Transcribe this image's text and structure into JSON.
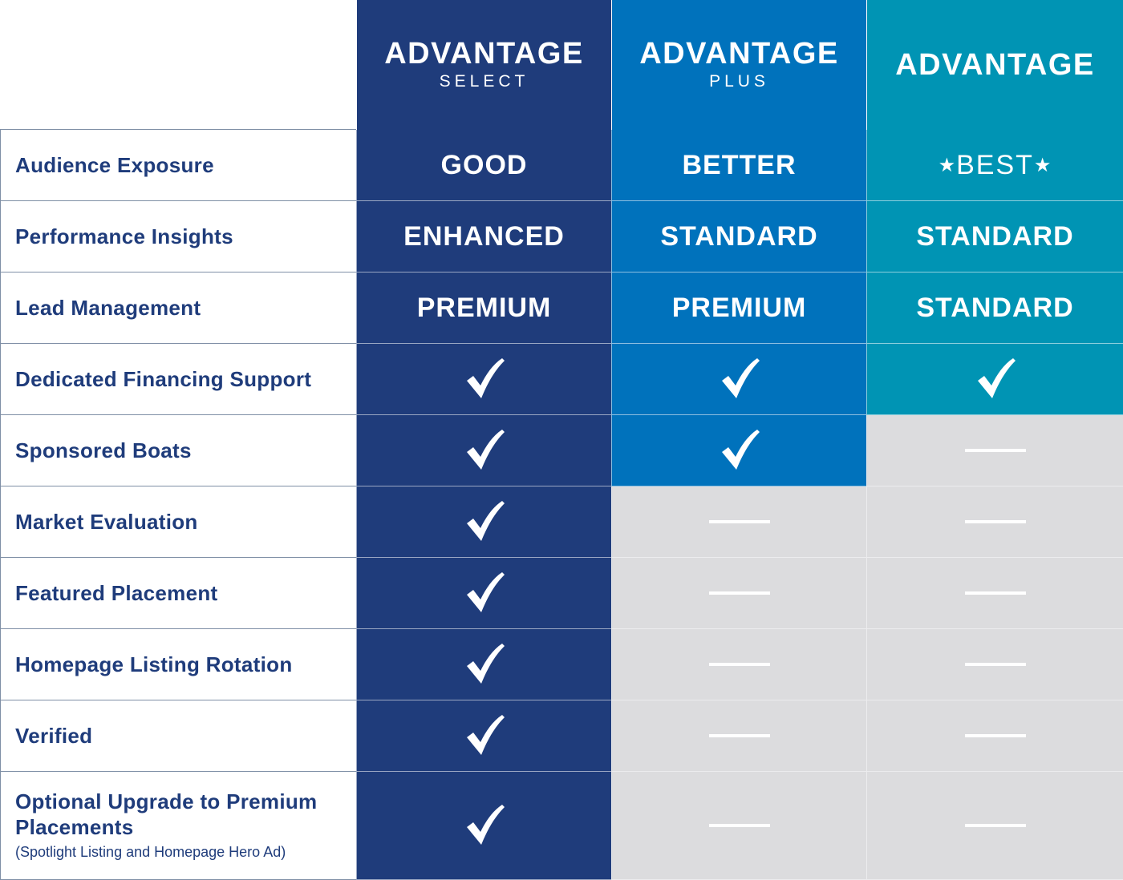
{
  "tiers": [
    {
      "name": "ADVANTAGE",
      "subtitle": "SELECT",
      "color": "#1f3c7b"
    },
    {
      "name": "ADVANTAGE",
      "subtitle": "PLUS",
      "color": "#0072bc"
    },
    {
      "name": "ADVANTAGE",
      "subtitle": "",
      "color": "#0094b4"
    }
  ],
  "rows": [
    {
      "label": "Audience Exposure",
      "values": [
        "GOOD",
        "BETTER",
        "BEST"
      ]
    },
    {
      "label": "Performance Insights",
      "values": [
        "ENHANCED",
        "STANDARD",
        "STANDARD"
      ]
    },
    {
      "label": "Lead Management",
      "values": [
        "PREMIUM",
        "PREMIUM",
        "STANDARD"
      ]
    },
    {
      "label": "Dedicated Financing Support",
      "values": [
        "check",
        "check",
        "check"
      ]
    },
    {
      "label": "Sponsored Boats",
      "values": [
        "check",
        "check",
        "none"
      ]
    },
    {
      "label": "Market Evaluation",
      "values": [
        "check",
        "none",
        "none"
      ]
    },
    {
      "label": "Featured Placement",
      "values": [
        "check",
        "none",
        "none"
      ]
    },
    {
      "label": "Homepage Listing Rotation",
      "values": [
        "check",
        "none",
        "none"
      ]
    },
    {
      "label": "Verified",
      "values": [
        "check",
        "none",
        "none"
      ]
    },
    {
      "label": "Optional Upgrade to Premium Placements",
      "note": "(Spotlight Listing and Homepage Hero Ad)",
      "values": [
        "check",
        "none",
        "none"
      ]
    }
  ],
  "icons": {
    "check": "check-icon",
    "none": "dash-icon",
    "star": "star-icon"
  },
  "colors": {
    "unavailable": "#dcdcde",
    "label_text": "#1f3c7b"
  }
}
